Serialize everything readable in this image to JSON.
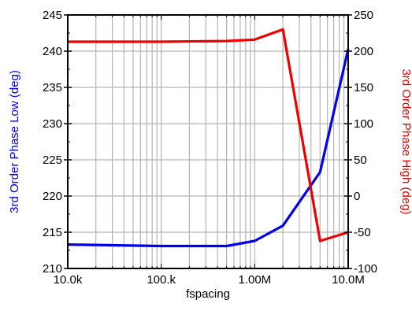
{
  "chart_data": {
    "type": "line",
    "xscale": "log",
    "xlim": [
      10000,
      10000000
    ],
    "xlabel": "fspacing",
    "x_tick_labels": [
      "10.0k",
      "100.k",
      "1.00M",
      "10.0M"
    ],
    "x_tick_values": [
      10000,
      100000,
      1000000,
      10000000
    ],
    "y_left": {
      "label": "3rd Order Phase Low (deg)",
      "color": "#0000ee",
      "lim": [
        210,
        245
      ],
      "ticks": [
        210,
        215,
        220,
        225,
        230,
        235,
        240,
        245
      ]
    },
    "y_right": {
      "label": "3rd Order Phase High (deg)",
      "color": "#ee0000",
      "lim": [
        -100,
        250
      ],
      "ticks": [
        -100,
        -50,
        0,
        50,
        100,
        150,
        200,
        250
      ]
    },
    "grid": true,
    "series": [
      {
        "axis": "left",
        "color": "#0000ee",
        "x": [
          10000,
          100000,
          500000,
          1000000,
          2000000,
          5000000,
          10000000
        ],
        "y": [
          213.3,
          213.1,
          213.1,
          213.8,
          215.9,
          223.3,
          240.3
        ]
      },
      {
        "axis": "right",
        "color": "#ee0000",
        "x": [
          10000,
          100000,
          500000,
          1000000,
          2000000,
          5000000,
          10000000
        ],
        "y": [
          213,
          213,
          214,
          216,
          230,
          -62,
          -50
        ]
      }
    ]
  }
}
